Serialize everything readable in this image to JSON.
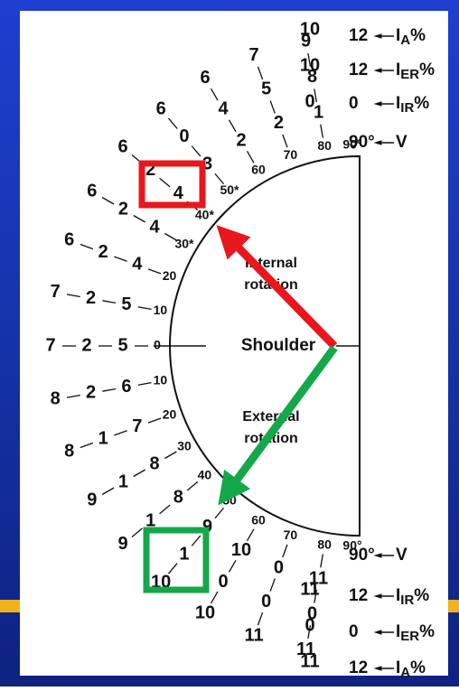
{
  "figure": {
    "center_label": "Shoulder",
    "upper_label": [
      "Internal",
      "rotation"
    ],
    "lower_label": [
      "External",
      "rotation"
    ],
    "upper_rays": [
      {
        "angle": "0",
        "values": [
          "7",
          "2",
          "5"
        ]
      },
      {
        "angle": "10",
        "values": [
          "7",
          "2",
          "5"
        ]
      },
      {
        "angle": "20",
        "values": [
          "6",
          "2",
          "4"
        ]
      },
      {
        "angle": "30*",
        "values": [
          "6",
          "2",
          "4"
        ]
      },
      {
        "angle": "40*",
        "values": [
          "6",
          "2",
          "4"
        ]
      },
      {
        "angle": "50*",
        "values": [
          "6",
          "0",
          "3"
        ]
      },
      {
        "angle": "60",
        "values": [
          "6",
          "4",
          "2"
        ]
      },
      {
        "angle": "70",
        "values": [
          "7",
          "5",
          "2"
        ]
      },
      {
        "angle": "80",
        "values": [
          "9",
          "8",
          "1"
        ]
      },
      {
        "angle": "90°",
        "values": [
          "10",
          "10",
          "0"
        ]
      }
    ],
    "lower_rays": [
      {
        "angle": "10",
        "values": [
          "8",
          "2",
          "6"
        ]
      },
      {
        "angle": "20",
        "values": [
          "8",
          "1",
          "7"
        ]
      },
      {
        "angle": "30",
        "values": [
          "9",
          "1",
          "8"
        ]
      },
      {
        "angle": "40",
        "values": [
          "9",
          "1",
          "8"
        ]
      },
      {
        "angle": "50",
        "values": [
          "10",
          "1",
          "9"
        ]
      },
      {
        "angle": "60",
        "values": [
          "10",
          "0",
          "10"
        ]
      },
      {
        "angle": "70",
        "values": [
          "11",
          "0",
          "0"
        ]
      },
      {
        "angle": "80",
        "values": [
          "11",
          "0",
          "11"
        ]
      },
      {
        "angle": "90°",
        "values": [
          "11",
          "0",
          "11"
        ]
      }
    ],
    "upper_legend": [
      {
        "value": "12",
        "symbol": "I",
        "sub": "A",
        "unit": "%"
      },
      {
        "value": "12",
        "symbol": "I",
        "sub": "ER",
        "unit": "%"
      },
      {
        "value": "0",
        "symbol": "I",
        "sub": "IR",
        "unit": "%"
      },
      {
        "value": "90°",
        "symbol": "V"
      }
    ],
    "lower_legend": [
      {
        "value": "90°",
        "symbol": "V"
      },
      {
        "value": "12",
        "symbol": "I",
        "sub": "IR",
        "unit": "%"
      },
      {
        "value": "0",
        "symbol": "I",
        "sub": "ER",
        "unit": "%"
      },
      {
        "value": "12",
        "symbol": "I",
        "sub": "A",
        "unit": "%"
      }
    ]
  }
}
